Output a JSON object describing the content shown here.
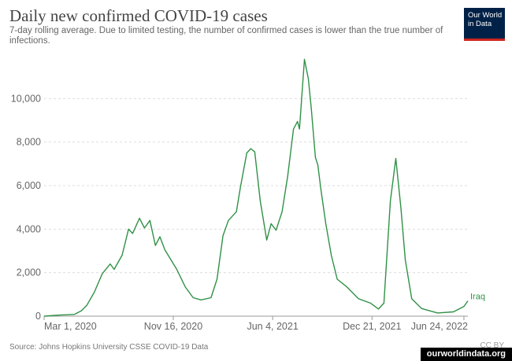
{
  "chart_data": {
    "type": "line",
    "title": "Daily new confirmed COVID-19 cases",
    "subtitle": "7-day rolling average. Due to limited testing, the number of confirmed cases is lower than the true number of infections.",
    "source": "Source: Johns Hopkins University CSSE COVID-19 Data",
    "license": "CC BY",
    "logo": [
      "Our World",
      "in Data"
    ],
    "site": "ourworldindata.org",
    "x": [
      "2020-03-01",
      "2020-04-01",
      "2020-05-01",
      "2020-05-15",
      "2020-05-26",
      "2020-06-10",
      "2020-06-26",
      "2020-07-12",
      "2020-07-20",
      "2020-08-05",
      "2020-08-18",
      "2020-08-26",
      "2020-09-09",
      "2020-09-19",
      "2020-09-30",
      "2020-10-11",
      "2020-10-20",
      "2020-10-30",
      "2020-11-23",
      "2020-12-10",
      "2020-12-26",
      "2021-01-11",
      "2021-01-31",
      "2021-02-12",
      "2021-02-24",
      "2021-03-07",
      "2021-03-23",
      "2021-03-31",
      "2021-04-13",
      "2021-04-21",
      "2021-04-29",
      "2021-05-10",
      "2021-05-23",
      "2021-06-01",
      "2021-06-11",
      "2021-06-23",
      "2021-07-04",
      "2021-07-16",
      "2021-07-24",
      "2021-07-28",
      "2021-08-07",
      "2021-08-15",
      "2021-08-21",
      "2021-08-29",
      "2021-09-03",
      "2021-09-09",
      "2021-09-19",
      "2021-09-30",
      "2021-10-12",
      "2021-10-31",
      "2021-11-24",
      "2021-12-18",
      "2022-01-03",
      "2022-01-14",
      "2022-01-27",
      "2022-02-07",
      "2022-02-17",
      "2022-02-26",
      "2022-03-11",
      "2022-03-31",
      "2022-05-02",
      "2022-06-03",
      "2022-06-24",
      "2022-07-02"
    ],
    "series": [
      {
        "name": "Iraq",
        "color": "#2f9146",
        "values": [
          0,
          50,
          80,
          250,
          500,
          1100,
          1950,
          2400,
          2150,
          2800,
          4000,
          3800,
          4500,
          4050,
          4400,
          3250,
          3650,
          3050,
          2150,
          1350,
          850,
          750,
          850,
          1700,
          3700,
          4400,
          4800,
          5900,
          7500,
          7700,
          7550,
          5300,
          3500,
          4250,
          3950,
          4800,
          6400,
          8600,
          8950,
          8600,
          11800,
          10900,
          9500,
          7300,
          6950,
          5850,
          4250,
          2800,
          1700,
          1350,
          800,
          600,
          330,
          600,
          5300,
          7250,
          5000,
          2600,
          800,
          350,
          150,
          200,
          450,
          700
        ]
      }
    ],
    "xlim": [
      "2020-03-01",
      "2022-07-02"
    ],
    "xticks": [
      {
        "value": "2020-03-01",
        "label": "Mar 1, 2020"
      },
      {
        "value": "2020-11-16",
        "label": "Nov 16, 2020"
      },
      {
        "value": "2021-06-04",
        "label": "Jun 4, 2021"
      },
      {
        "value": "2021-12-21",
        "label": "Dec 21, 2021"
      },
      {
        "value": "2022-06-24",
        "label": "Jun 24, 2022"
      }
    ],
    "ylim": [
      0,
      12000
    ],
    "yticks": [
      0,
      {
        "value": 2000,
        "label": "2,000"
      },
      {
        "value": 4000,
        "label": "4,000"
      },
      {
        "value": 6000,
        "label": "6,000"
      },
      {
        "value": 8000,
        "label": "8,000"
      },
      {
        "value": 10000,
        "label": "10,000"
      }
    ],
    "grid": true
  }
}
